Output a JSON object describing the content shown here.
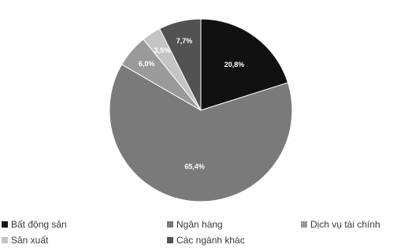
{
  "chart_data": {
    "type": "pie",
    "title": "",
    "categories": [
      "Bất động sản",
      "Ngân hàng",
      "Dịch vụ tài chính",
      "Sản xuất",
      "Các ngành khác"
    ],
    "values": [
      20.8,
      65.4,
      6.0,
      3.5,
      7.7
    ],
    "data_labels": [
      "20,8%",
      "65,4%",
      "6,0%",
      "3,5%",
      "7,7%"
    ],
    "colors": [
      "#111111",
      "#7a7a7a",
      "#9a9a9a",
      "#c4c4c4",
      "#525252"
    ],
    "legend": {
      "position": "bottom",
      "items": [
        "Bất động sản",
        "Ngân hàng",
        "Dịch vụ tài chính",
        "Sản xuất",
        "Các ngành khác"
      ]
    }
  }
}
